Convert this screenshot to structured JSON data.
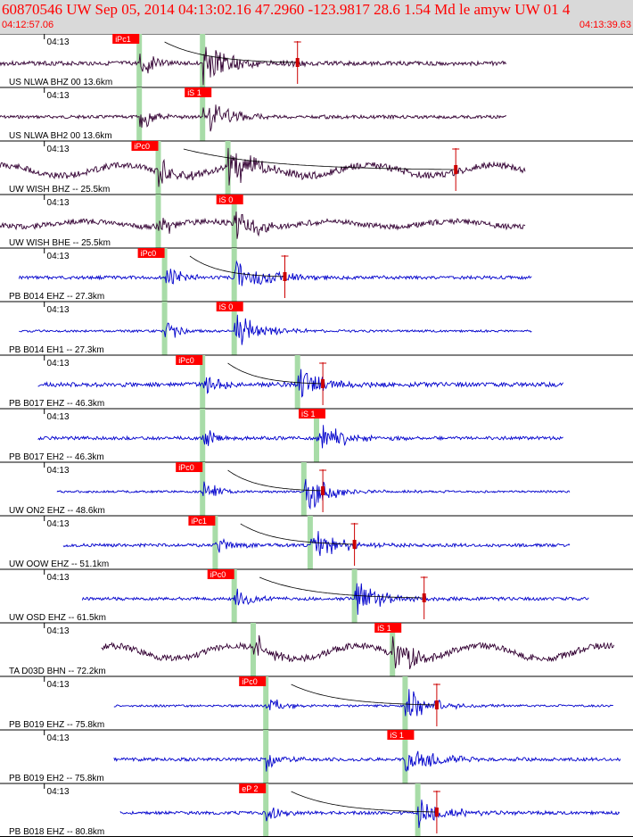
{
  "header": {
    "title": "60870546 UW Sep 05, 2014 04:13:02.16   47.2960 -123.9817 28.6 1.54 Md le amyw UW 01   4",
    "time_start": "04:12:57.06",
    "time_end": "04:13:39.63",
    "tick_label": "04:13"
  },
  "colors": {
    "header_bg": "#d9d9d9",
    "header_text": "#ff0000",
    "trace_dark": "#330033",
    "trace_blue": "#0000cc",
    "pick_label_bg": "#ff0000",
    "pick_bar": "#a8dca8",
    "coda_line": "#000000",
    "end_marker": "#cc0000"
  },
  "chart_data": {
    "type": "line",
    "title": "60870546 UW Sep 05, 2014 04:13:02.16   47.2960 -123.9817 28.6 1.54 Md le amyw UW 01   4",
    "x_range": [
      "04:12:57.06",
      "04:13:39.63"
    ],
    "x_tick": "04:13",
    "series": [
      {
        "name": "US NLWA BHZ 00 13.6km",
        "color": "dark",
        "pick": "iPc1",
        "onset": 0.22,
        "sS": 0.32,
        "amp": 1.0,
        "noise": 0.04,
        "seed": 3,
        "t0": 0.0,
        "t1": 0.8,
        "wave": 0,
        "coda": true,
        "end": 0.47
      },
      {
        "name": "US NLWA BH2 00 13.6km",
        "color": "dark",
        "pick": "iS 1",
        "onset": 0.22,
        "sS": 0.32,
        "amp": 0.9,
        "noise": 0.03,
        "seed": 7,
        "t0": 0.0,
        "t1": 0.8,
        "wave": 0,
        "coda": false,
        "end": null
      },
      {
        "name": "UW WISH BHZ -- 25.5km",
        "color": "dark",
        "pick": "iPc0",
        "onset": 0.25,
        "sS": 0.36,
        "amp": 1.0,
        "noise": 0.06,
        "seed": 11,
        "t0": 0.0,
        "t1": 0.83,
        "wave": 0.5,
        "coda": true,
        "end": 0.72
      },
      {
        "name": "UW WISH BHE -- 25.5km",
        "color": "dark",
        "pick": "iS 0",
        "onset": 0.25,
        "sS": 0.37,
        "amp": 0.7,
        "noise": 0.05,
        "seed": 13,
        "t0": 0.0,
        "t1": 0.83,
        "wave": 0.25,
        "coda": false,
        "end": null
      },
      {
        "name": "PB B014 EHZ -- 27.3km",
        "color": "blue",
        "pick": "iPc0",
        "onset": 0.26,
        "sS": 0.37,
        "amp": 1.0,
        "noise": 0.03,
        "seed": 17,
        "t0": 0.03,
        "t1": 0.84,
        "wave": 0,
        "coda": true,
        "end": 0.45
      },
      {
        "name": "PB B014 EH1 -- 27.3km",
        "color": "blue",
        "pick": "iS 0",
        "onset": 0.26,
        "sS": 0.37,
        "amp": 0.8,
        "noise": 0.02,
        "seed": 19,
        "t0": 0.03,
        "t1": 0.84,
        "wave": 0,
        "coda": false,
        "end": null
      },
      {
        "name": "PB B017 EHZ -- 46.3km",
        "color": "blue",
        "pick": "iPc0",
        "onset": 0.32,
        "sS": 0.47,
        "amp": 0.9,
        "noise": 0.04,
        "seed": 23,
        "t0": 0.06,
        "t1": 0.89,
        "wave": 0,
        "coda": true,
        "end": 0.51
      },
      {
        "name": "PB B017 EH2 -- 46.3km",
        "color": "blue",
        "pick": "iS 1",
        "onset": 0.32,
        "sS": 0.5,
        "amp": 0.8,
        "noise": 0.03,
        "seed": 29,
        "t0": 0.06,
        "t1": 0.89,
        "wave": 0,
        "coda": false,
        "end": null
      },
      {
        "name": "UW ON2 EHZ -- 48.6km",
        "color": "blue",
        "pick": "iPc0",
        "onset": 0.32,
        "sS": 0.48,
        "amp": 0.9,
        "noise": 0.02,
        "seed": 31,
        "t0": 0.09,
        "t1": 0.9,
        "wave": 0,
        "coda": true,
        "end": 0.51
      },
      {
        "name": "UW OOW EHZ -- 51.1km",
        "color": "blue",
        "pick": "iPc1",
        "onset": 0.34,
        "sS": 0.49,
        "amp": 0.8,
        "noise": 0.03,
        "seed": 37,
        "t0": 0.1,
        "t1": 0.9,
        "wave": 0,
        "coda": true,
        "end": 0.56
      },
      {
        "name": "UW OSD EHZ -- 61.5km",
        "color": "blue",
        "pick": "iPc0",
        "onset": 0.37,
        "sS": 0.56,
        "amp": 0.8,
        "noise": 0.03,
        "seed": 41,
        "t0": 0.13,
        "t1": 0.93,
        "wave": 0,
        "coda": true,
        "end": 0.67
      },
      {
        "name": "TA D03D BHN -- 72.2km",
        "color": "dark",
        "pick": "iS 1",
        "onset": 0.4,
        "sS": 0.62,
        "amp": 0.9,
        "noise": 0.06,
        "seed": 43,
        "t0": 0.16,
        "t1": 0.97,
        "wave": 0.6,
        "coda": false,
        "end": null
      },
      {
        "name": "PB B019 EHZ -- 75.8km",
        "color": "blue",
        "pick": "iPc0",
        "onset": 0.42,
        "sS": 0.64,
        "amp": 0.8,
        "noise": 0.02,
        "seed": 47,
        "t0": 0.18,
        "t1": 0.97,
        "wave": 0,
        "coda": true,
        "end": 0.69
      },
      {
        "name": "PB B019 EH2 -- 75.8km",
        "color": "blue",
        "pick": "iS 1",
        "onset": 0.42,
        "sS": 0.64,
        "amp": 0.9,
        "noise": 0.03,
        "seed": 53,
        "t0": 0.18,
        "t1": 0.98,
        "wave": 0,
        "coda": false,
        "end": null
      },
      {
        "name": "PB B018 EHZ -- 80.8km",
        "color": "blue",
        "pick": "eP 2",
        "onset": 0.42,
        "sS": 0.66,
        "amp": 0.8,
        "noise": 0.03,
        "seed": 59,
        "t0": 0.19,
        "t1": 0.98,
        "wave": 0,
        "coda": true,
        "end": 0.69
      }
    ]
  }
}
